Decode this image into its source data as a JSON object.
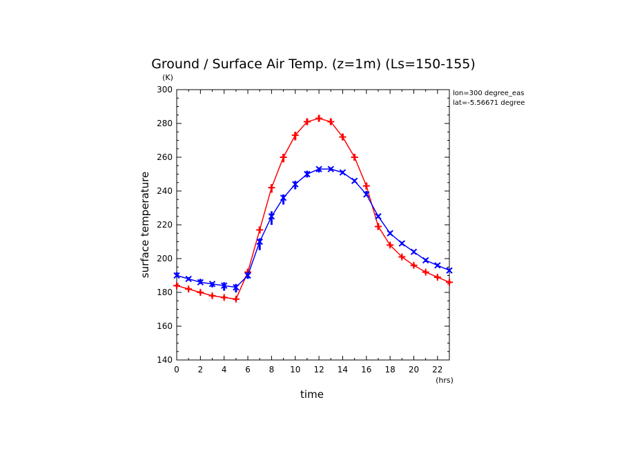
{
  "chart_data": {
    "type": "line",
    "title": "Ground / Surface Air Temp. (z=1m) (Ls=150-155)",
    "xlabel": "time",
    "ylabel": "surface temperature",
    "x_unit": "(hrs)",
    "y_unit": "(K)",
    "xlim": [
      0,
      23
    ],
    "ylim": [
      140,
      300
    ],
    "x_ticks": [
      0,
      2,
      4,
      6,
      8,
      10,
      12,
      14,
      16,
      18,
      20,
      22
    ],
    "y_ticks": [
      140,
      160,
      180,
      200,
      220,
      240,
      260,
      280,
      300
    ],
    "annotations": [
      "lon=300 degree_eas",
      "lat=-5.56671 degree"
    ],
    "x": [
      0,
      1,
      2,
      3,
      4,
      5,
      6,
      7,
      8,
      9,
      10,
      11,
      12,
      13,
      14,
      15,
      16,
      17,
      18,
      19,
      20,
      21,
      22,
      23
    ],
    "series": [
      {
        "color": "#ff0000",
        "marker": "+",
        "values": [
          184,
          182,
          180,
          178,
          177,
          176,
          192,
          217,
          242,
          260,
          273,
          281,
          283,
          281,
          272,
          260,
          243,
          219,
          208,
          201,
          196,
          192,
          189,
          186
        ],
        "spread": [
          [
            183,
            185
          ],
          [
            181,
            183
          ],
          [
            179,
            181
          ],
          [
            177,
            179
          ],
          [
            176,
            178
          ],
          [
            175,
            177
          ],
          [
            190,
            194
          ],
          [
            215,
            219
          ],
          [
            239,
            244
          ],
          [
            257,
            262
          ],
          [
            270,
            275
          ],
          [
            279,
            283
          ],
          [
            281,
            285
          ],
          [
            279,
            283
          ],
          [
            270,
            274
          ],
          [
            258,
            262
          ],
          [
            241,
            245
          ],
          [
            217,
            221
          ],
          [
            207,
            209
          ],
          [
            200,
            202
          ],
          [
            195,
            197
          ],
          [
            191,
            193
          ],
          [
            188,
            190
          ],
          [
            185,
            187
          ]
        ]
      },
      {
        "color": "#0000ff",
        "marker": "x",
        "values": [
          190,
          188,
          186,
          185,
          184,
          183,
          190,
          210,
          225,
          236,
          244,
          250,
          253,
          253,
          251,
          246,
          238,
          225,
          215,
          209,
          204,
          199,
          196,
          193
        ],
        "spread": [
          [
            189,
            192
          ],
          [
            187,
            189
          ],
          [
            185,
            188
          ],
          [
            183,
            186
          ],
          [
            181,
            186
          ],
          [
            180,
            185
          ],
          [
            188,
            192
          ],
          [
            205,
            212
          ],
          [
            220,
            228
          ],
          [
            232,
            238
          ],
          [
            241,
            246
          ],
          [
            248,
            252
          ],
          [
            251,
            254
          ],
          [
            252,
            254
          ],
          [
            250,
            252
          ],
          [
            245,
            247
          ],
          [
            237,
            240
          ],
          [
            224,
            226
          ],
          [
            214,
            216
          ],
          [
            208,
            210
          ],
          [
            203,
            205
          ],
          [
            198,
            200
          ],
          [
            195,
            197
          ],
          [
            192,
            194
          ]
        ]
      }
    ]
  }
}
